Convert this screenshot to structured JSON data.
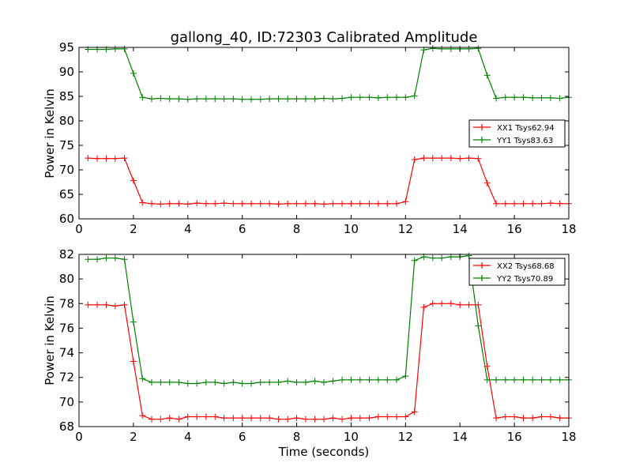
{
  "chart_data": [
    {
      "type": "line",
      "title": "gallong_40, ID:72303 Calibrated Amplitude",
      "xlabel": "",
      "ylabel": "Power in Kelvin",
      "xlim": [
        0,
        18
      ],
      "ylim": [
        60,
        95
      ],
      "xticks": [
        0,
        2,
        4,
        6,
        8,
        10,
        12,
        14,
        16,
        18
      ],
      "yticks": [
        60,
        65,
        70,
        75,
        80,
        85,
        90,
        95
      ],
      "grid": false,
      "legend_position": "center-right",
      "x": [
        0.33,
        0.67,
        1.0,
        1.33,
        1.67,
        2.0,
        2.33,
        2.67,
        3.0,
        3.33,
        3.67,
        4.0,
        4.33,
        4.67,
        5.0,
        5.33,
        5.67,
        6.0,
        6.33,
        6.67,
        7.0,
        7.33,
        7.67,
        8.0,
        8.33,
        8.67,
        9.0,
        9.33,
        9.67,
        10.0,
        10.33,
        10.67,
        11.0,
        11.33,
        11.67,
        12.0,
        12.33,
        12.67,
        13.0,
        13.33,
        13.67,
        14.0,
        14.33,
        14.67,
        15.0,
        15.33,
        15.67,
        16.0,
        16.33,
        16.67,
        17.0,
        17.33,
        17.67,
        18.0
      ],
      "series": [
        {
          "name": "XX1 Tsys62.94",
          "color": "#ff0000",
          "values": [
            72.4,
            72.3,
            72.3,
            72.3,
            72.4,
            67.8,
            63.3,
            63.1,
            63.0,
            63.1,
            63.1,
            63.0,
            63.2,
            63.1,
            63.1,
            63.2,
            63.1,
            63.1,
            63.1,
            63.1,
            63.1,
            63.0,
            63.1,
            63.1,
            63.1,
            63.1,
            63.0,
            63.1,
            63.1,
            63.1,
            63.1,
            63.1,
            63.1,
            63.1,
            63.1,
            63.5,
            72.1,
            72.4,
            72.4,
            72.4,
            72.4,
            72.3,
            72.4,
            72.3,
            67.3,
            63.1,
            63.1,
            63.1,
            63.1,
            63.1,
            63.1,
            63.2,
            63.1,
            63.1
          ],
          "markers": "+"
        },
        {
          "name": "YY1 Tsys83.63",
          "color": "#008000",
          "values": [
            94.6,
            94.6,
            94.6,
            94.7,
            94.7,
            89.7,
            84.8,
            84.5,
            84.6,
            84.5,
            84.5,
            84.4,
            84.5,
            84.5,
            84.5,
            84.5,
            84.5,
            84.4,
            84.4,
            84.4,
            84.5,
            84.5,
            84.5,
            84.5,
            84.5,
            84.5,
            84.6,
            84.5,
            84.6,
            84.8,
            84.8,
            84.8,
            84.7,
            84.8,
            84.8,
            84.8,
            85.1,
            94.5,
            94.8,
            94.7,
            94.7,
            94.7,
            94.7,
            94.8,
            89.3,
            84.6,
            84.8,
            84.8,
            84.8,
            84.7,
            84.7,
            84.7,
            84.6,
            84.8
          ]
        }
      ]
    },
    {
      "type": "line",
      "title": "",
      "xlabel": "Time (seconds)",
      "ylabel": "Power in Kelvin",
      "xlim": [
        0,
        18
      ],
      "ylim": [
        68,
        82
      ],
      "xticks": [
        0,
        2,
        4,
        6,
        8,
        10,
        12,
        14,
        16,
        18
      ],
      "yticks": [
        68,
        70,
        72,
        74,
        76,
        78,
        80,
        82
      ],
      "grid": false,
      "legend_position": "top-right",
      "x": [
        0.33,
        0.67,
        1.0,
        1.33,
        1.67,
        2.0,
        2.33,
        2.67,
        3.0,
        3.33,
        3.67,
        4.0,
        4.33,
        4.67,
        5.0,
        5.33,
        5.67,
        6.0,
        6.33,
        6.67,
        7.0,
        7.33,
        7.67,
        8.0,
        8.33,
        8.67,
        9.0,
        9.33,
        9.67,
        10.0,
        10.33,
        10.67,
        11.0,
        11.33,
        11.67,
        12.0,
        12.33,
        12.67,
        13.0,
        13.33,
        13.67,
        14.0,
        14.33,
        14.67,
        15.0,
        15.33,
        15.67,
        16.0,
        16.33,
        16.67,
        17.0,
        17.33,
        17.67,
        18.0
      ],
      "series": [
        {
          "name": "XX2 Tsys68.68",
          "color": "#ff0000",
          "values": [
            77.9,
            77.9,
            77.9,
            77.8,
            77.9,
            73.3,
            68.9,
            68.6,
            68.6,
            68.7,
            68.6,
            68.8,
            68.8,
            68.8,
            68.8,
            68.7,
            68.7,
            68.7,
            68.7,
            68.7,
            68.7,
            68.6,
            68.6,
            68.7,
            68.6,
            68.6,
            68.6,
            68.7,
            68.6,
            68.7,
            68.7,
            68.7,
            68.8,
            68.8,
            68.8,
            68.8,
            69.2,
            77.7,
            78.0,
            78.0,
            78.0,
            77.9,
            77.9,
            77.9,
            72.9,
            68.7,
            68.8,
            68.8,
            68.7,
            68.7,
            68.8,
            68.8,
            68.7,
            68.7
          ]
        },
        {
          "name": "YY2 Tsys70.89",
          "color": "#008000",
          "values": [
            81.6,
            81.6,
            81.7,
            81.7,
            81.6,
            76.5,
            71.9,
            71.6,
            71.6,
            71.6,
            71.6,
            71.5,
            71.5,
            71.6,
            71.6,
            71.5,
            71.6,
            71.5,
            71.5,
            71.6,
            71.6,
            71.6,
            71.7,
            71.6,
            71.6,
            71.7,
            71.6,
            71.7,
            71.8,
            71.8,
            71.8,
            71.8,
            71.8,
            71.8,
            71.8,
            72.1,
            81.5,
            81.8,
            81.7,
            81.7,
            81.8,
            81.8,
            81.9,
            76.2,
            71.8,
            71.8,
            71.8,
            71.8,
            71.8,
            71.8,
            71.8,
            71.8,
            71.8,
            71.8
          ]
        }
      ]
    }
  ]
}
